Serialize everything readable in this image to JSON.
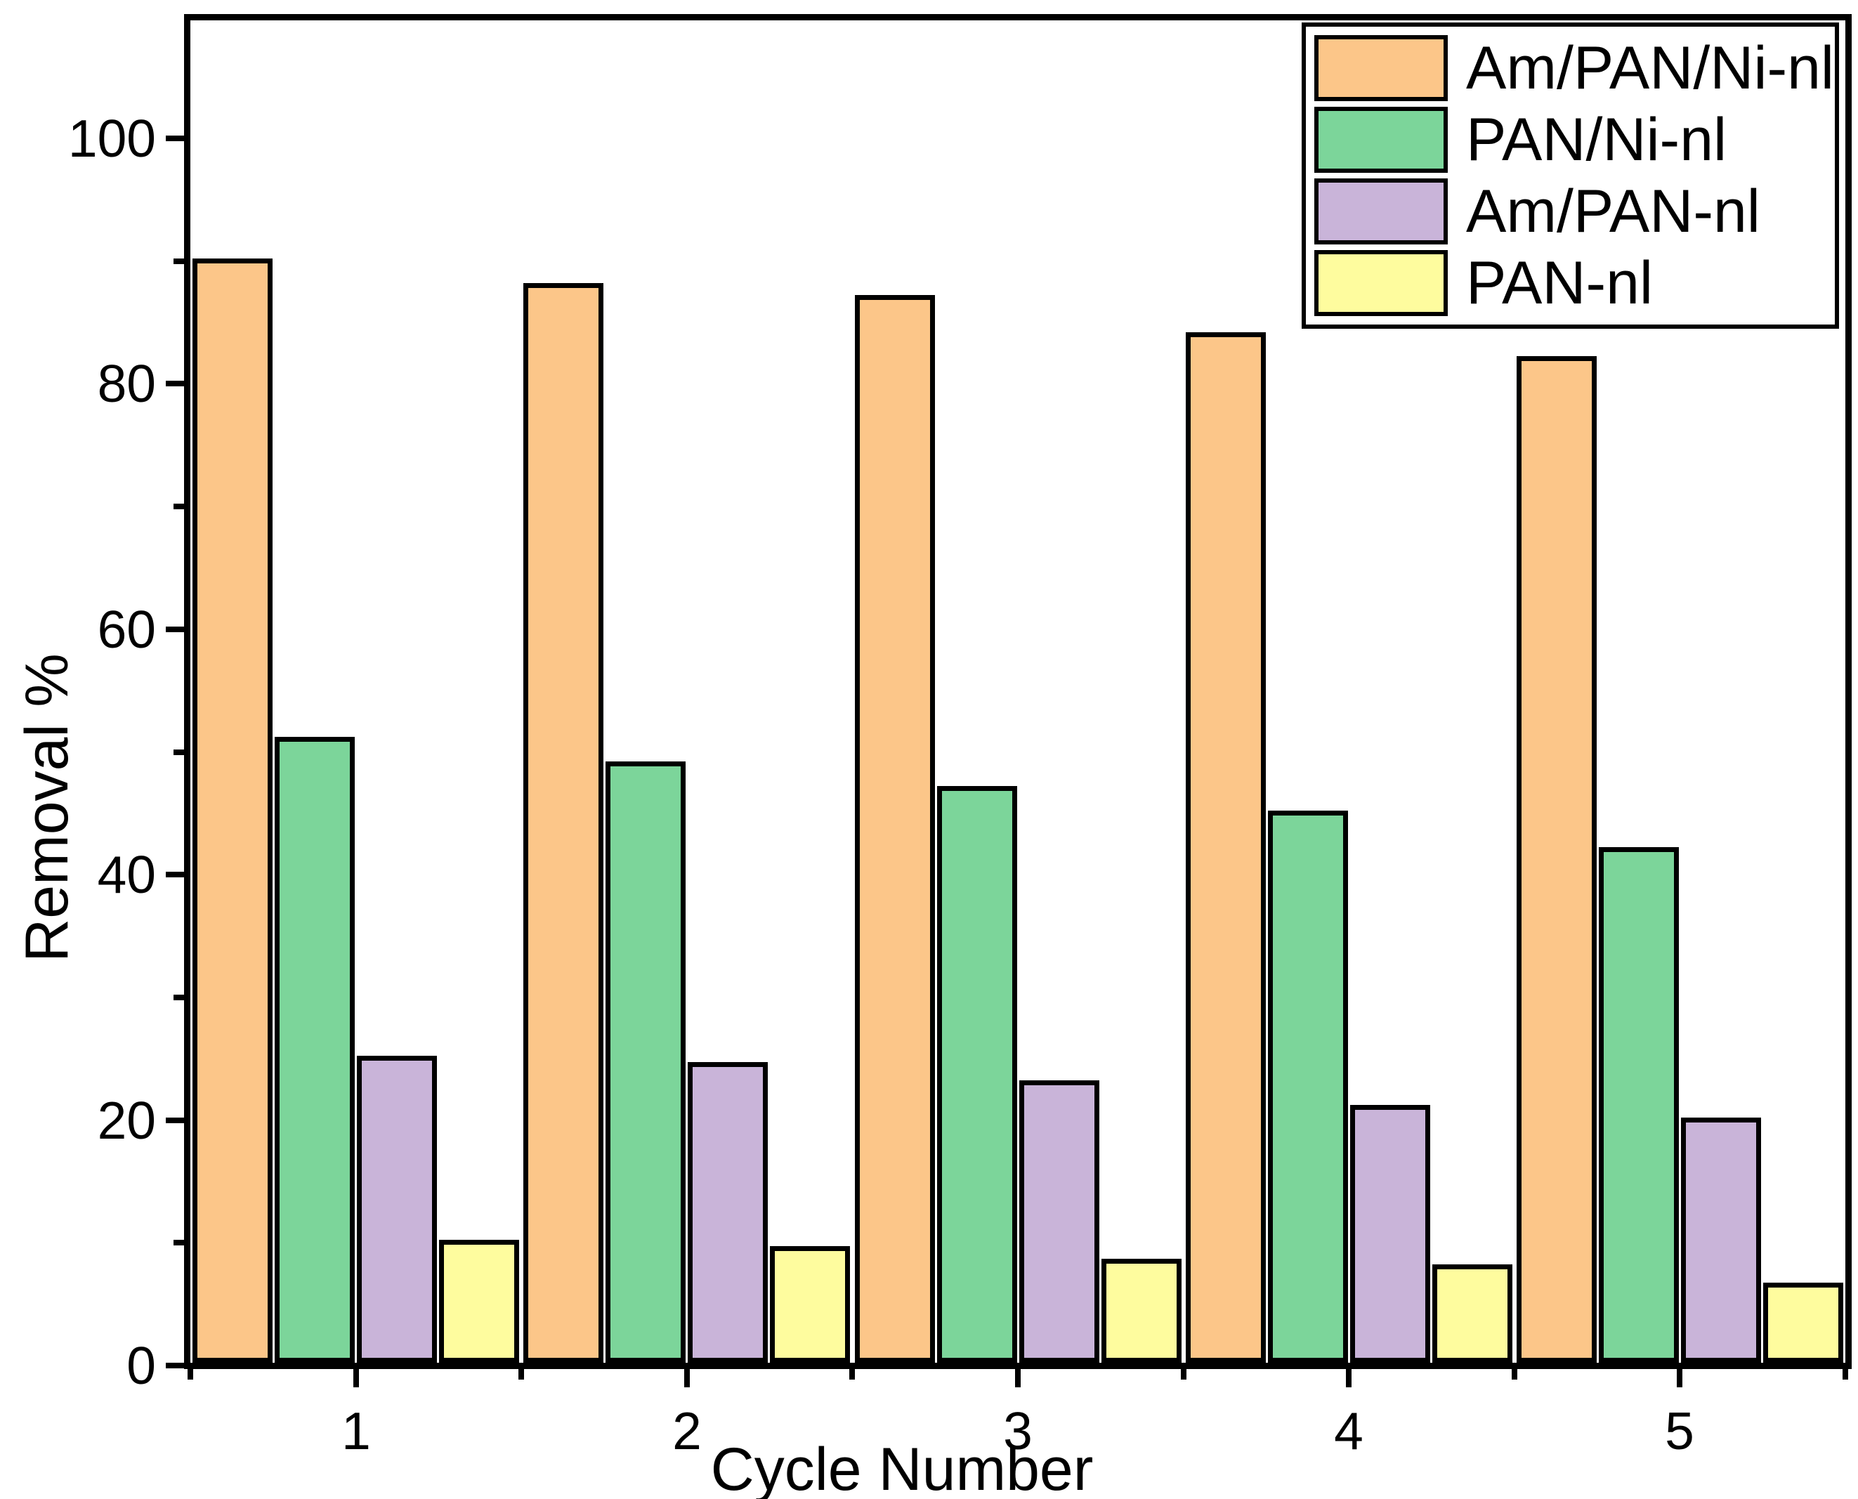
{
  "figure": {
    "background": "#ffffff",
    "axis_color": "#000000"
  },
  "chart_data": {
    "type": "bar",
    "title": "",
    "xlabel": "Cycle Number",
    "ylabel": "Removal %",
    "categories": [
      "1",
      "2",
      "3",
      "4",
      "5"
    ],
    "series": [
      {
        "name": "Am/PAN/Ni-nl",
        "color": "#FCC689",
        "values": [
          90,
          88,
          87,
          84,
          82
        ]
      },
      {
        "name": "PAN/Ni-nl",
        "color": "#7CD59A",
        "values": [
          51,
          49,
          47,
          45,
          42
        ]
      },
      {
        "name": "Am/PAN-nl",
        "color": "#C9B4D9",
        "values": [
          25,
          24.5,
          23,
          21,
          20
        ]
      },
      {
        "name": "PAN-nl",
        "color": "#FEFC9E",
        "values": [
          10,
          9.5,
          8.5,
          8,
          6.5
        ]
      }
    ],
    "ylim": [
      0,
      110
    ],
    "yticks_major": [
      0,
      20,
      40,
      60,
      80,
      100
    ],
    "yticks_minor": [
      10,
      30,
      50,
      70,
      90
    ],
    "bar_edge_color": "#000000",
    "grid": false,
    "legend_position": "top-right"
  },
  "legend": {
    "entries": [
      "Am/PAN/Ni-nl",
      "PAN/Ni-nl",
      "Am/PAN-nl",
      "PAN-nl"
    ]
  }
}
